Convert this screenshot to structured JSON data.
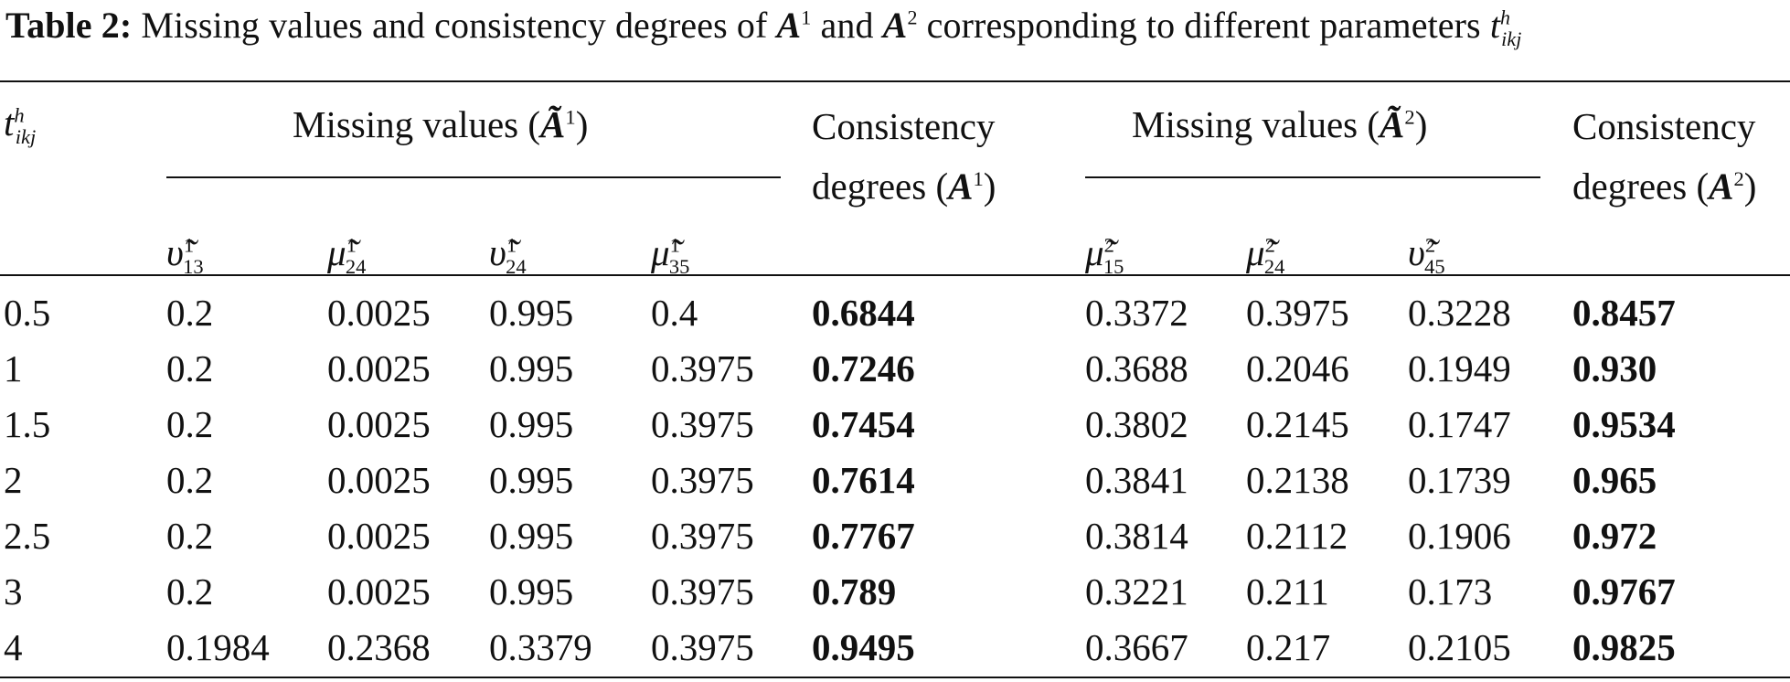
{
  "caption": {
    "label": "Table 2:",
    "text_a": " Missing values and consistency degrees of ",
    "A1": "A",
    "sup1": "1",
    "text_and": " and ",
    "A2": "A",
    "sup2": "2",
    "text_b": " corresponding to different parameters ",
    "t": "t",
    "t_sup": "h",
    "t_sub": "ikj"
  },
  "headers": {
    "param": {
      "t": "t",
      "sup": "h",
      "sub": "ikj"
    },
    "missing1": {
      "text": "Missing values (",
      "A": "Ã",
      "sup": "1",
      "close": ")"
    },
    "cons1": {
      "line1": "Consistency",
      "line2": "degrees (",
      "A": "A",
      "sup": "1",
      "close": ")"
    },
    "missing2": {
      "text": "Missing values (",
      "A": "Ã",
      "sup": "2",
      "close": ")"
    },
    "cons2": {
      "line1": "Consistency",
      "line2": "degrees (",
      "A": "A",
      "sup": "2",
      "close": ")"
    },
    "sub_cols": [
      {
        "sym": "υ̃",
        "sup": "1",
        "sub": "13"
      },
      {
        "sym": "μ̃",
        "sup": "1",
        "sub": "24"
      },
      {
        "sym": "υ̃",
        "sup": "1",
        "sub": "24"
      },
      {
        "sym": "μ̃",
        "sup": "1",
        "sub": "35"
      },
      {
        "sym": "μ̃",
        "sup": "2",
        "sub": "15"
      },
      {
        "sym": "μ̃",
        "sup": "2",
        "sub": "24"
      },
      {
        "sym": "υ̃",
        "sup": "2",
        "sub": "45"
      }
    ]
  },
  "rows": [
    [
      "0.5",
      "0.2",
      "0.0025",
      "0.995",
      "0.4",
      "0.6844",
      "0.3372",
      "0.3975",
      "0.3228",
      "0.8457"
    ],
    [
      "1",
      "0.2",
      "0.0025",
      "0.995",
      "0.3975",
      "0.7246",
      "0.3688",
      "0.2046",
      "0.1949",
      "0.930"
    ],
    [
      "1.5",
      "0.2",
      "0.0025",
      "0.995",
      "0.3975",
      "0.7454",
      "0.3802",
      "0.2145",
      "0.1747",
      "0.9534"
    ],
    [
      "2",
      "0.2",
      "0.0025",
      "0.995",
      "0.3975",
      "0.7614",
      "0.3841",
      "0.2138",
      "0.1739",
      "0.965"
    ],
    [
      "2.5",
      "0.2",
      "0.0025",
      "0.995",
      "0.3975",
      "0.7767",
      "0.3814",
      "0.2112",
      "0.1906",
      "0.972"
    ],
    [
      "3",
      "0.2",
      "0.0025",
      "0.995",
      "0.3975",
      "0.789",
      "0.3221",
      "0.211",
      "0.173",
      "0.9767"
    ],
    [
      "4",
      "0.1984",
      "0.2368",
      "0.3379",
      "0.3975",
      "0.9495",
      "0.3667",
      "0.217",
      "0.2105",
      "0.9825"
    ]
  ]
}
